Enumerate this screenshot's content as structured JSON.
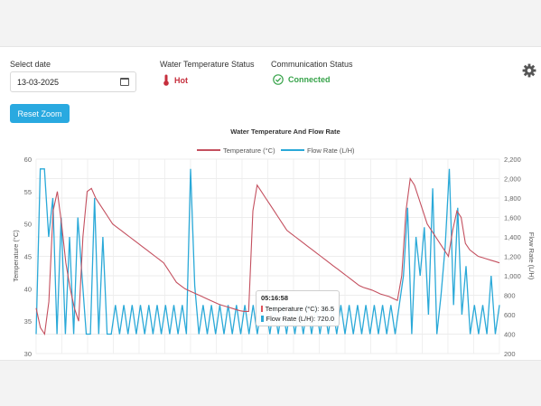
{
  "controls": {
    "date_label": "Select date",
    "date_value": "13-03-2025",
    "reset_label": "Reset Zoom"
  },
  "water_status": {
    "label": "Water Temperature Status",
    "value": "Hot",
    "color": "#c62f3d"
  },
  "comm_status": {
    "label": "Communication Status",
    "value": "Connected",
    "color": "#37a34a"
  },
  "icons": {
    "date": "calendar-icon",
    "water": "thermometer-icon",
    "comm": "check-circle-icon",
    "settings": "gear-icon"
  },
  "chart_data": {
    "type": "line",
    "title": "Water Temperature And Flow Rate",
    "ylabel_left": "Temperature (°C)",
    "ylabel_right": "Flow Rate (L/H)",
    "ylim_left": [
      30,
      60
    ],
    "ylim_right": [
      200,
      2200
    ],
    "yticks_left": [
      "30",
      "35",
      "40",
      "45",
      "50",
      "55",
      "60"
    ],
    "yticks_right": [
      "200",
      "400",
      "600",
      "800",
      "1,000",
      "1,200",
      "1,400",
      "1,600",
      "1,800",
      "2,000",
      "2,200"
    ],
    "legend_position": "top-center",
    "grid": true,
    "series": [
      {
        "name": "Temperature (°C)",
        "color": "#c4505f",
        "axis": "left",
        "values": [
          37,
          34,
          33,
          38,
          52,
          55,
          50,
          44,
          40,
          37,
          35,
          48,
          55,
          55.5,
          54,
          53,
          52,
          51,
          50,
          49.5,
          49,
          48.5,
          48,
          47.5,
          47,
          46.5,
          46,
          45.5,
          45,
          44.5,
          44,
          43,
          42,
          41,
          40.5,
          40,
          39.7,
          39.4,
          39.1,
          38.8,
          38.5,
          38.2,
          37.9,
          37.6,
          37.4,
          37.2,
          37,
          36.8,
          36.6,
          36.5,
          36.5,
          52,
          56,
          55,
          54,
          53,
          52,
          51,
          50,
          49,
          48.5,
          48,
          47.5,
          47,
          46.5,
          46,
          45.5,
          45,
          44.5,
          44,
          43.5,
          43,
          42.5,
          42,
          41.5,
          41,
          40.5,
          40.2,
          40,
          39.8,
          39.5,
          39.2,
          39,
          38.8,
          38.5,
          38.2,
          42,
          52,
          57,
          56,
          54,
          52,
          50,
          49,
          48,
          47,
          46,
          45,
          49,
          52,
          51,
          47,
          46,
          45.5,
          45,
          44.8,
          44.6,
          44.4,
          44.2,
          44
        ]
      },
      {
        "name": "Flow Rate (L/H)",
        "color": "#2aa9d8",
        "axis": "right",
        "values": [
          400,
          2100,
          2100,
          1400,
          1800,
          400,
          1600,
          400,
          1400,
          400,
          1600,
          1000,
          400,
          400,
          1800,
          400,
          1400,
          400,
          400,
          700,
          400,
          700,
          400,
          700,
          400,
          700,
          400,
          700,
          400,
          700,
          400,
          700,
          400,
          700,
          400,
          700,
          400,
          2100,
          900,
          400,
          700,
          400,
          700,
          400,
          700,
          400,
          700,
          400,
          700,
          400,
          700,
          400,
          700,
          400,
          700,
          700,
          400,
          700,
          400,
          700,
          400,
          700,
          400,
          700,
          400,
          700,
          400,
          700,
          400,
          700,
          400,
          700,
          400,
          700,
          400,
          700,
          400,
          700,
          400,
          700,
          400,
          700,
          400,
          700,
          400,
          700,
          400,
          700,
          1000,
          1700,
          400,
          1400,
          1000,
          1500,
          600,
          1900,
          400,
          800,
          1300,
          2100,
          700,
          1700,
          600,
          1100,
          400,
          700,
          400,
          700,
          400,
          1000,
          400,
          700
        ]
      }
    ],
    "tooltip": {
      "time": "05:16:58",
      "rows": [
        "Temperature (°C): 36.5",
        "Flow Rate (L/H): 720.0"
      ],
      "colors": [
        "#e0525a",
        "#2aa9d8"
      ]
    }
  }
}
